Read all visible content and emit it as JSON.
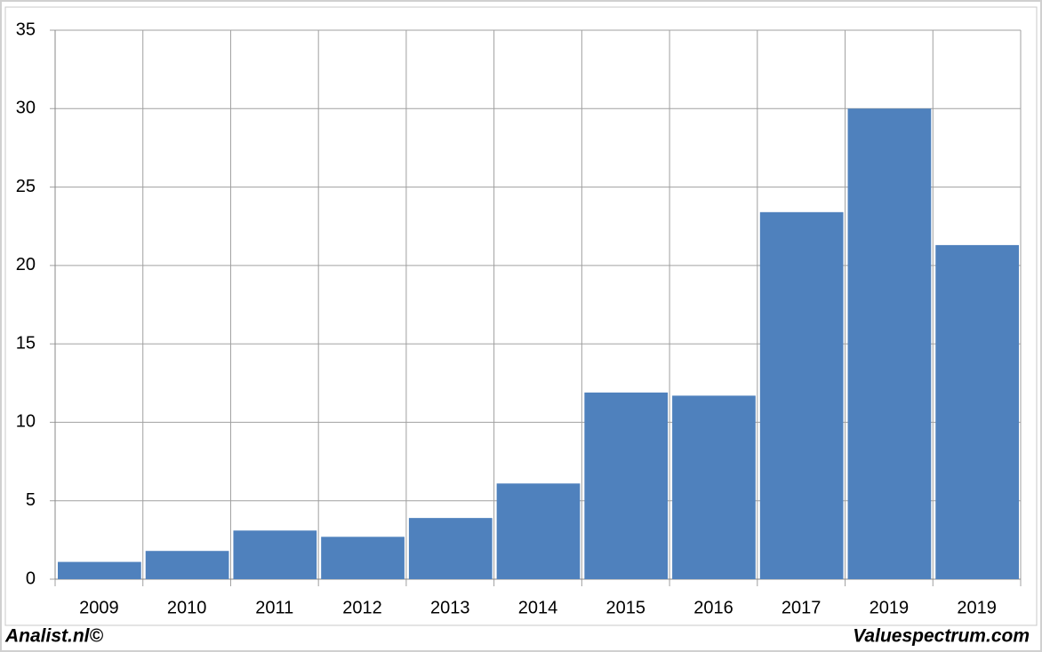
{
  "chart_data": {
    "type": "bar",
    "categories": [
      "2009",
      "2010",
      "2011",
      "2012",
      "2013",
      "2014",
      "2015",
      "2016",
      "2017",
      "2019",
      "2019"
    ],
    "values": [
      1.1,
      1.8,
      3.1,
      2.7,
      3.9,
      6.1,
      11.9,
      11.7,
      23.4,
      30.0,
      21.3
    ],
    "color": "#4f81bd",
    "ylim": [
      0,
      35
    ],
    "yticks": [
      0,
      5,
      10,
      15,
      20,
      25,
      30,
      35
    ],
    "grid": true
  },
  "footer": {
    "left": "Analist.nl©",
    "right": "Valuespectrum.com"
  }
}
